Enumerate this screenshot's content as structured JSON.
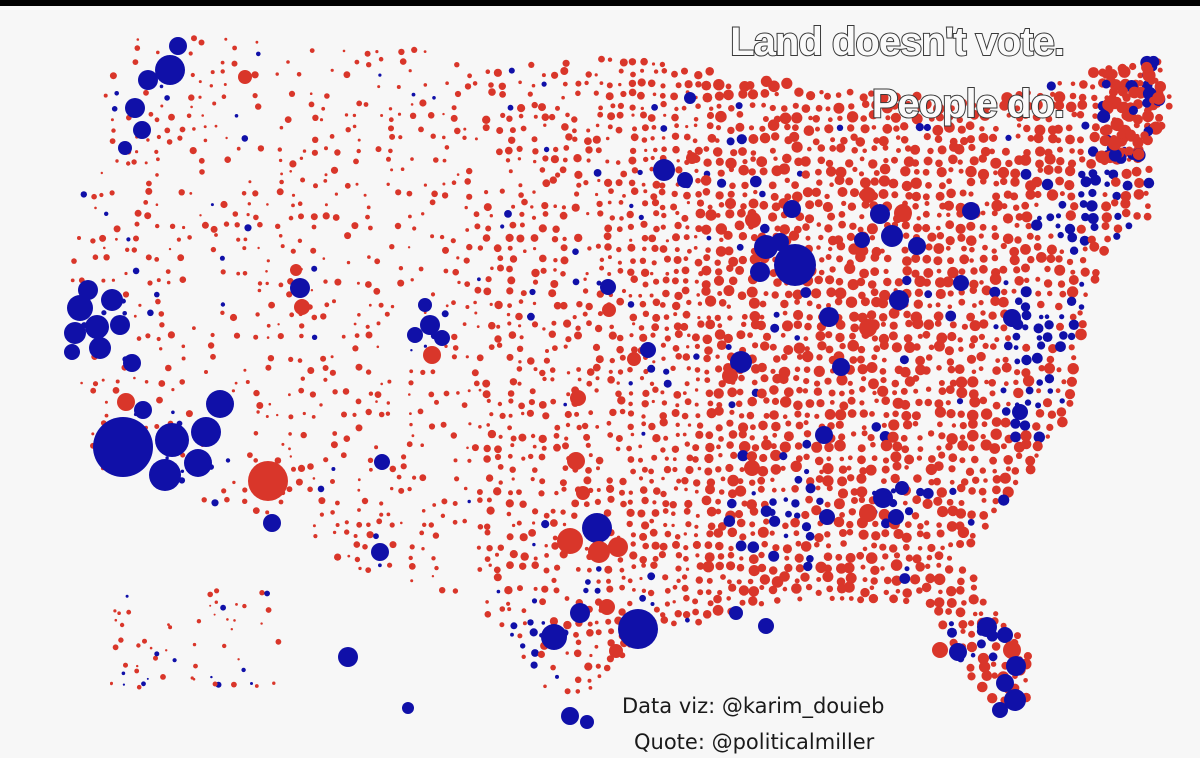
{
  "headline": {
    "line1": "Land doesn't vote.",
    "line2": "People do."
  },
  "credits": {
    "dataviz": "Data viz: @karim_douieb",
    "quote": "Quote: @politicalmiller"
  },
  "legend_colors": {
    "republican": "#d9362a",
    "democrat": "#1010a8",
    "background": "#f7f7f7"
  }
}
